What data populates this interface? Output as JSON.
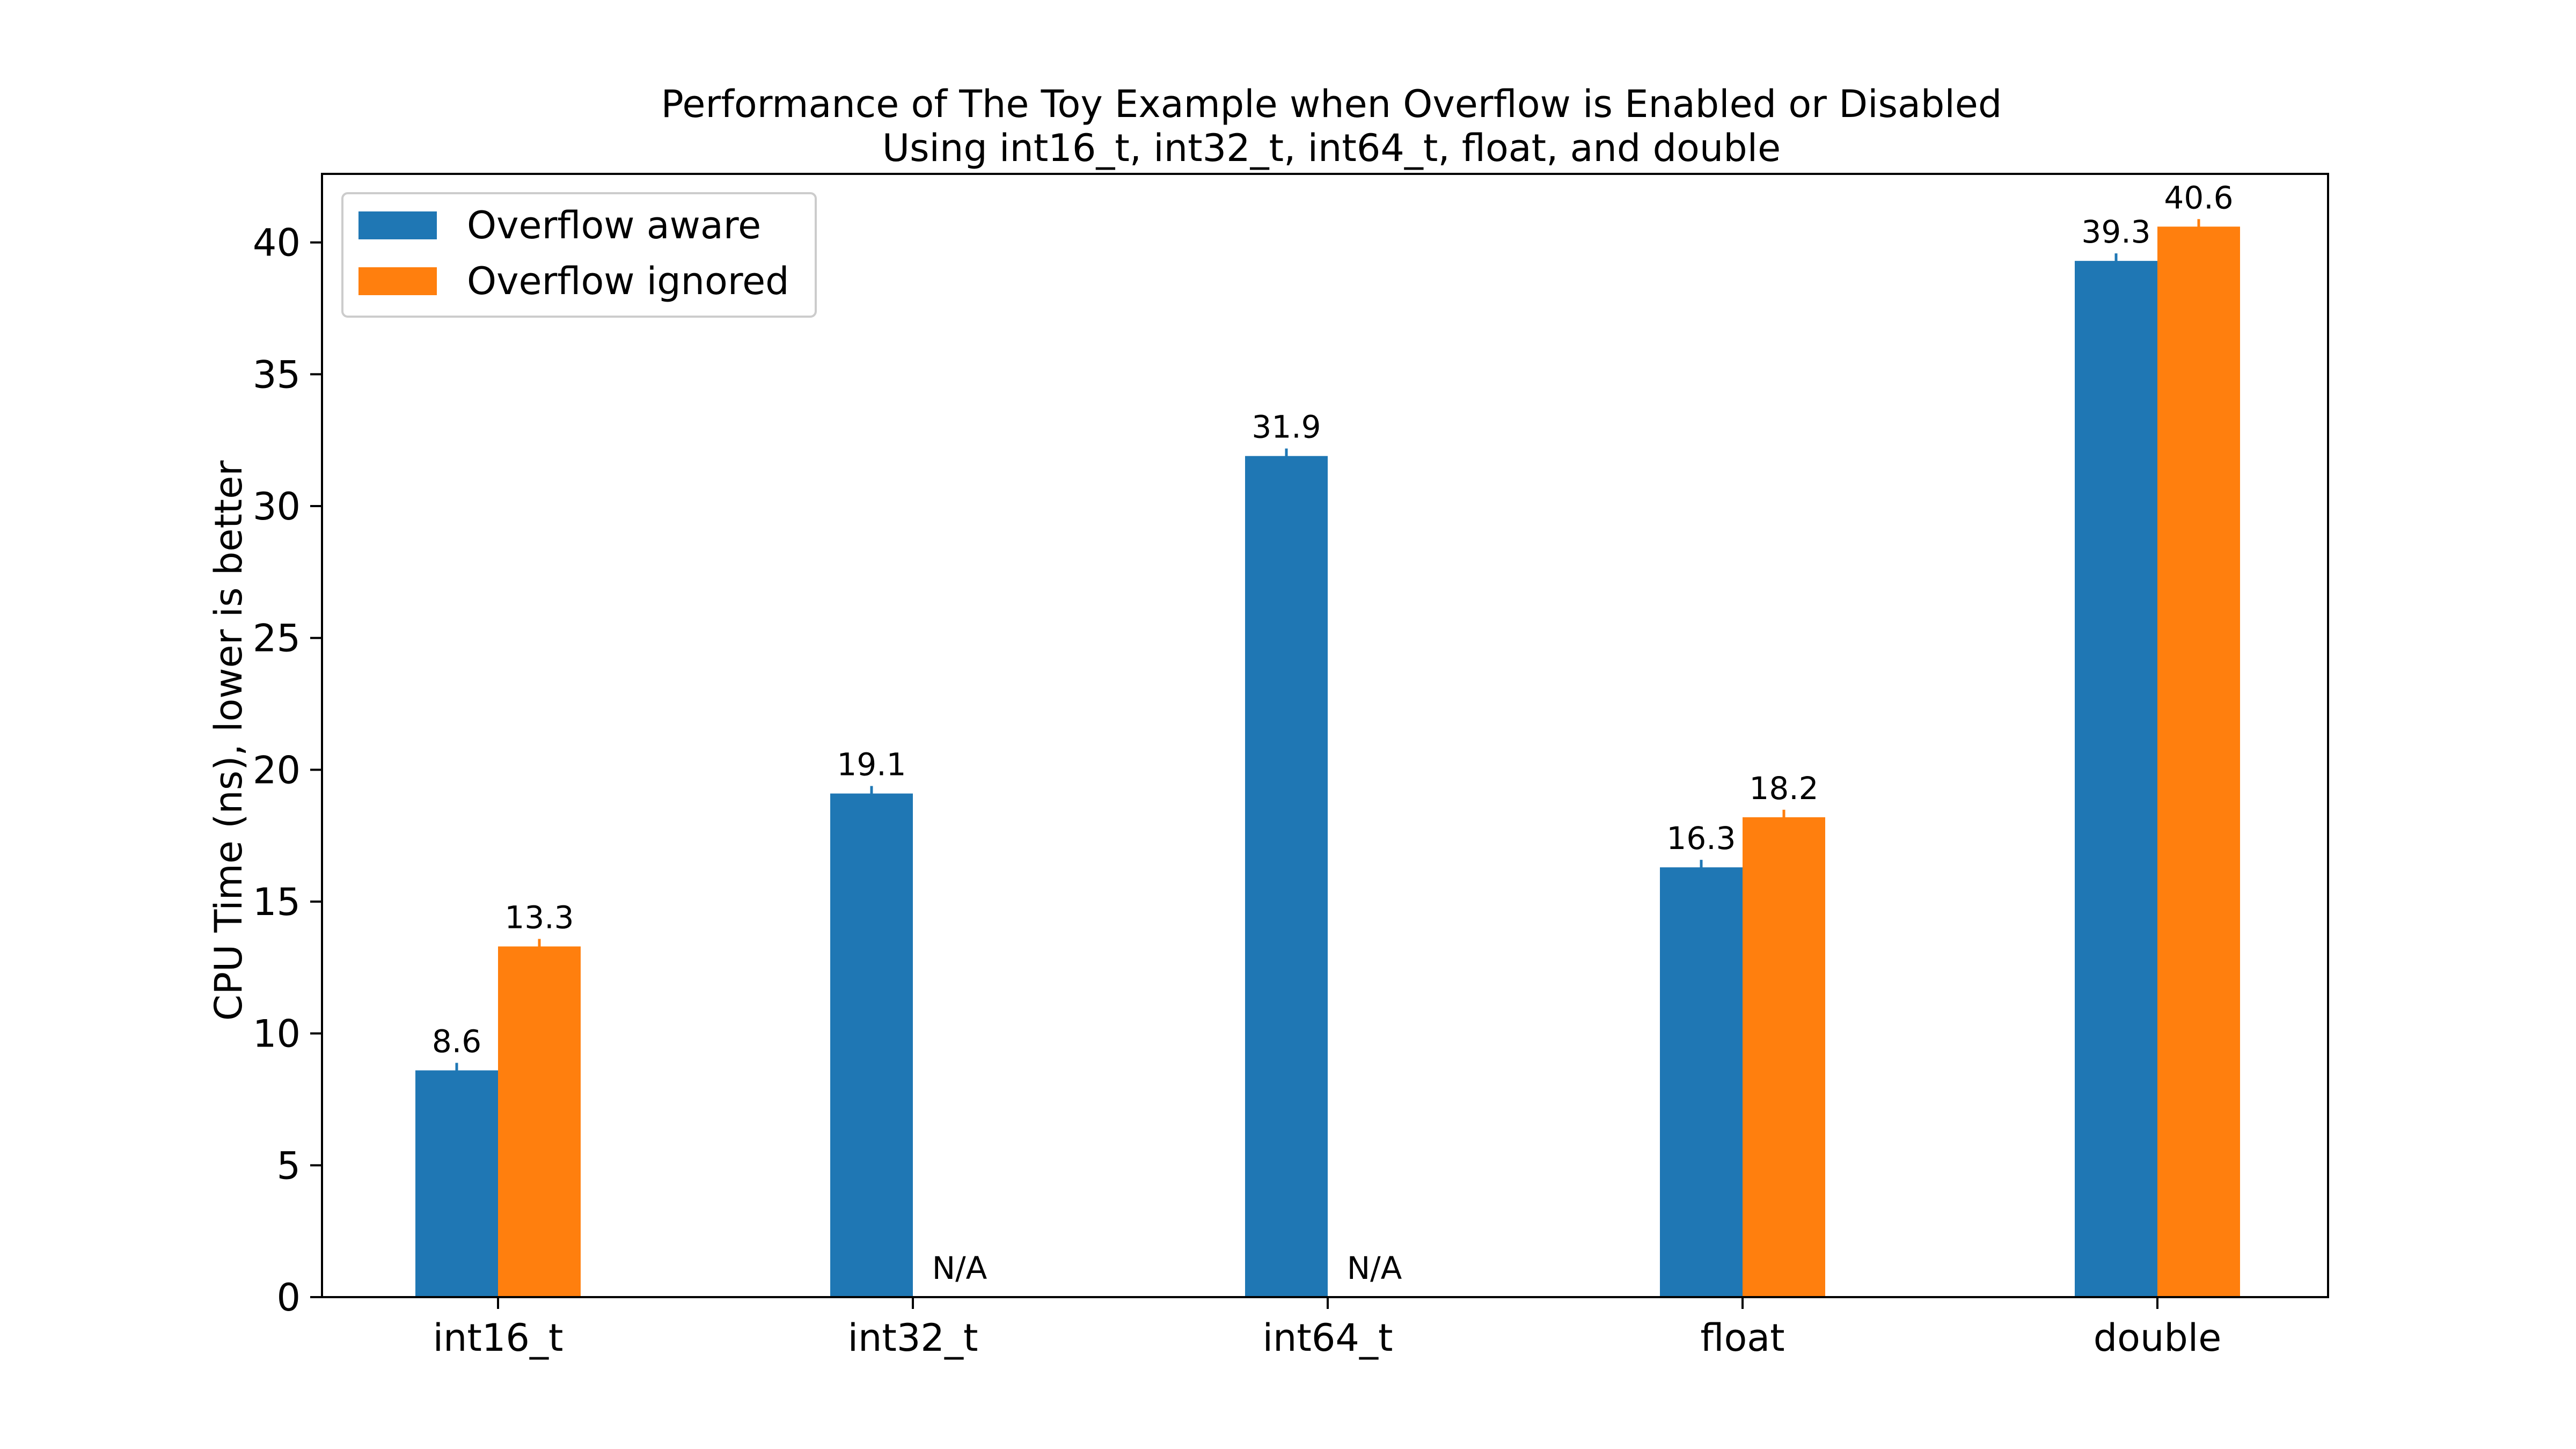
{
  "chart_data": {
    "type": "bar",
    "title": "Performance of The Toy Example when Overflow is Enabled or Disabled",
    "subtitle": "Using int16_t, int32_t, int64_t, float, and double",
    "xlabel": "",
    "ylabel": "CPU Time (ns), lower is better",
    "categories": [
      "int16_t",
      "int32_t",
      "int64_t",
      "float",
      "double"
    ],
    "series": [
      {
        "name": "Overflow aware",
        "color": "#1f77b4",
        "values": [
          8.6,
          19.1,
          31.9,
          16.3,
          39.3
        ],
        "labels": [
          "8.6",
          "19.1",
          "31.9",
          "16.3",
          "39.3"
        ]
      },
      {
        "name": "Overflow ignored",
        "color": "#ff7f0e",
        "values": [
          13.3,
          null,
          null,
          18.2,
          40.6
        ],
        "labels": [
          "13.3",
          "N/A",
          "N/A",
          "18.2",
          "40.6"
        ]
      }
    ],
    "ylim": [
      0,
      42.6
    ],
    "yticks": [
      0,
      5,
      10,
      15,
      20,
      25,
      30,
      35,
      40
    ],
    "grid": false,
    "legend_position": "top-left"
  }
}
